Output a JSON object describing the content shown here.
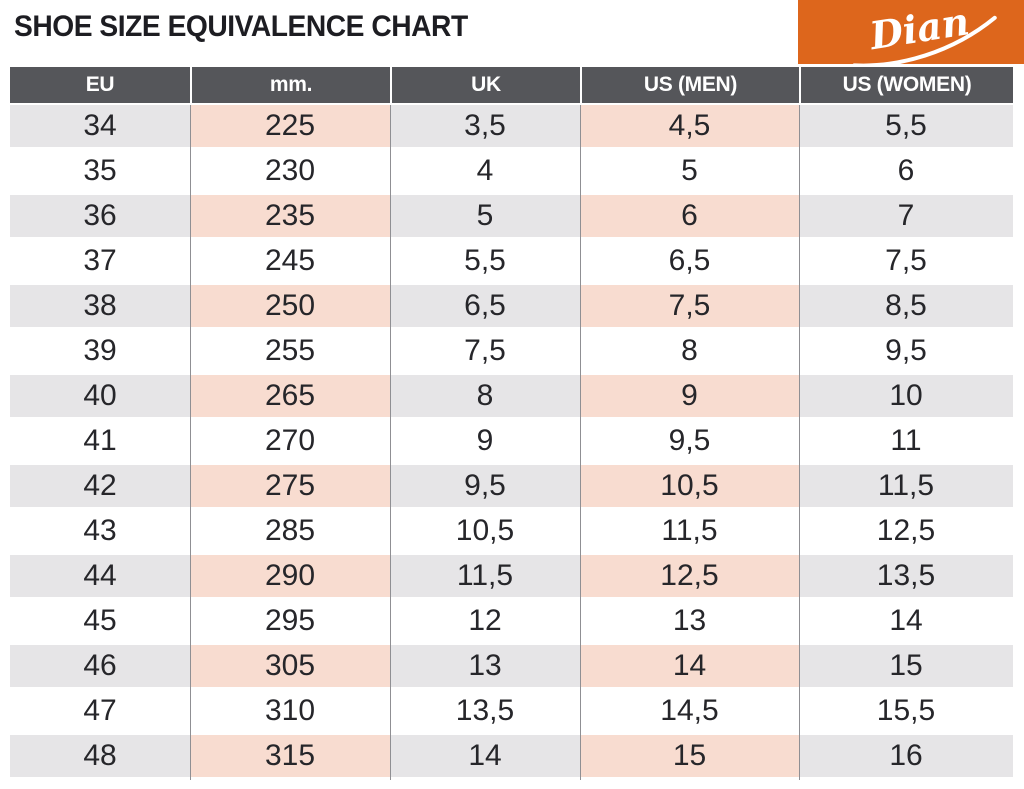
{
  "page": {
    "title": "SHOE SIZE EQUIVALENCE CHART"
  },
  "brand": {
    "logo_text": "Dian",
    "background": "#DD661C",
    "text_color": "#FFFFFF"
  },
  "colors": {
    "header_bg": "#55565A",
    "header_text": "#FFFFFF",
    "row_alt_gray": "#E6E5E7",
    "row_alt_pink": "#F8DCD0",
    "row_white": "#FFFFFF",
    "cell_text": "#26262A",
    "divider": "#8F8F93",
    "title_text": "#1D1D22"
  },
  "chart_data": {
    "type": "table",
    "title": "SHOE SIZE EQUIVALENCE CHART",
    "columns": [
      "EU",
      "mm.",
      "UK",
      "US (MEN)",
      "US (WOMEN)"
    ],
    "highlighted_columns": [
      "mm.",
      "US (MEN)"
    ],
    "row_striping": "odd rows (34, 36, ...) shaded; mm. and US (MEN) columns shaded pink, others gray",
    "rows": [
      [
        "34",
        "225",
        "3,5",
        "4,5",
        "5,5"
      ],
      [
        "35",
        "230",
        "4",
        "5",
        "6"
      ],
      [
        "36",
        "235",
        "5",
        "6",
        "7"
      ],
      [
        "37",
        "245",
        "5,5",
        "6,5",
        "7,5"
      ],
      [
        "38",
        "250",
        "6,5",
        "7,5",
        "8,5"
      ],
      [
        "39",
        "255",
        "7,5",
        "8",
        "9,5"
      ],
      [
        "40",
        "265",
        "8",
        "9",
        "10"
      ],
      [
        "41",
        "270",
        "9",
        "9,5",
        "11"
      ],
      [
        "42",
        "275",
        "9,5",
        "10,5",
        "11,5"
      ],
      [
        "43",
        "285",
        "10,5",
        "11,5",
        "12,5"
      ],
      [
        "44",
        "290",
        "11,5",
        "12,5",
        "13,5"
      ],
      [
        "45",
        "295",
        "12",
        "13",
        "14"
      ],
      [
        "46",
        "305",
        "13",
        "14",
        "15"
      ],
      [
        "47",
        "310",
        "13,5",
        "14,5",
        "15,5"
      ],
      [
        "48",
        "315",
        "14",
        "15",
        "16"
      ]
    ]
  }
}
